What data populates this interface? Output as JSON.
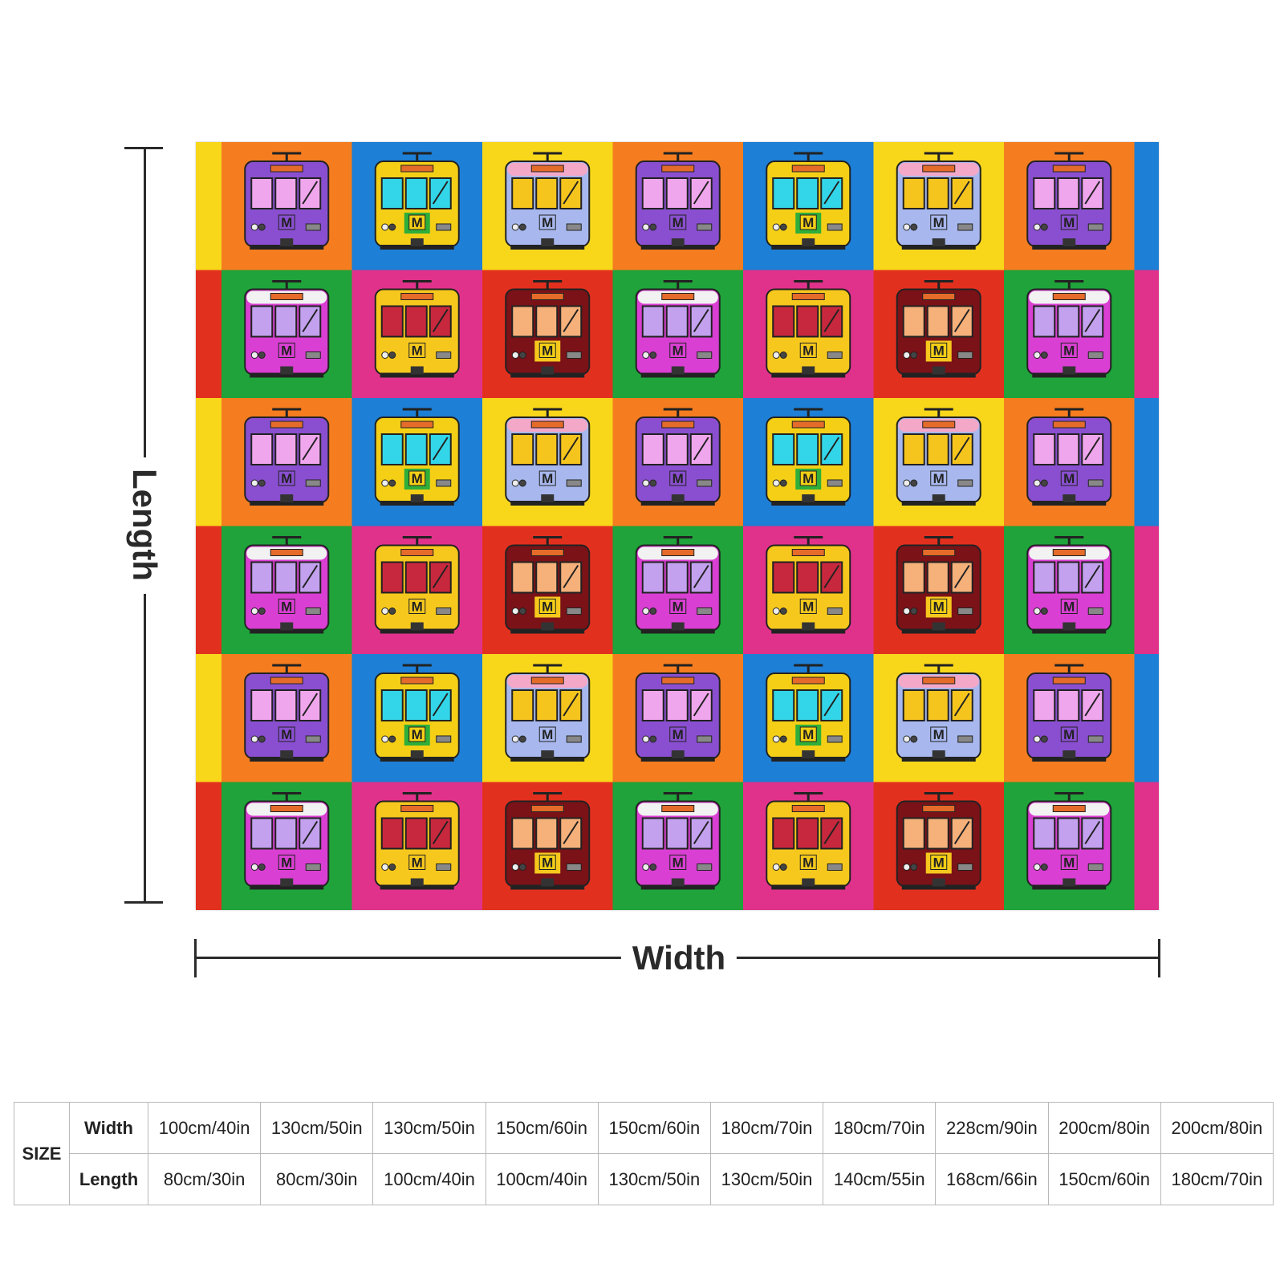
{
  "dimensions": {
    "length_label": "Length",
    "width_label": "Width"
  },
  "blanket_pattern": {
    "rows": 6,
    "cols": 7,
    "background_colors": {
      "row_a": [
        "#f57d1f",
        "#1d7fd6",
        "#f8d71b",
        "#f57d1f",
        "#1d7fd6",
        "#f8d71b",
        "#f57d1f"
      ],
      "row_b": [
        "#1fa33a",
        "#e0328b",
        "#e2301f",
        "#1fa33a",
        "#e0328b",
        "#e2301f",
        "#1fa33a"
      ]
    },
    "edge_colors": {
      "left_a": "#f8d71b",
      "left_b": "#e2301f",
      "right_a": "#1d7fd6",
      "right_b": "#e0328b"
    },
    "train_styles": {
      "purple": {
        "body": "#8a4fd0",
        "windows": "#f0a6ec",
        "roof": "#8a4fd0"
      },
      "green": {
        "body": "#f4cf16",
        "windows": "#33d6e8",
        "roof": "#f4cf16",
        "lower": "#2fae3a"
      },
      "blue": {
        "body": "#a8b8ee",
        "windows": "#f6c51d",
        "roof": "#f4a8c8"
      },
      "magenta": {
        "body": "#d93fd2",
        "windows": "#c3a1ee",
        "roof": "#f2f2f2"
      },
      "yellow": {
        "body": "#f6c81d",
        "windows": "#c8283d",
        "roof": "#f6c81d"
      },
      "maroon": {
        "body": "#7a1218",
        "windows": "#f6b07a",
        "roof": "#7a1218",
        "lower": "#f6c81d"
      }
    },
    "row_a_trains": [
      "purple",
      "green",
      "blue",
      "purple",
      "green",
      "blue",
      "purple"
    ],
    "row_b_trains": [
      "magenta",
      "yellow",
      "maroon",
      "magenta",
      "yellow",
      "maroon",
      "magenta"
    ],
    "logo_letter": "M"
  },
  "size_table": {
    "size_label": "SIZE",
    "width_label": "Width",
    "length_label": "Length",
    "widths": [
      "100cm/40in",
      "130cm/50in",
      "130cm/50in",
      "150cm/60in",
      "150cm/60in",
      "180cm/70in",
      "180cm/70in",
      "228cm/90in",
      "200cm/80in",
      "200cm/80in"
    ],
    "lengths": [
      "80cm/30in",
      "80cm/30in",
      "100cm/40in",
      "100cm/40in",
      "130cm/50in",
      "130cm/50in",
      "140cm/55in",
      "168cm/66in",
      "150cm/60in",
      "180cm/70in"
    ]
  }
}
